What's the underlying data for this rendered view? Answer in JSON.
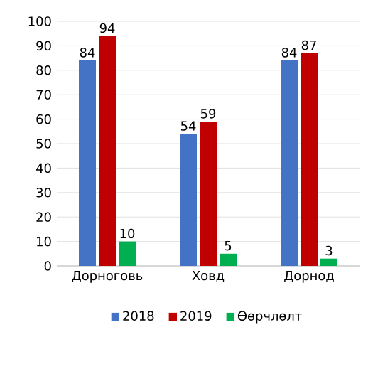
{
  "chart_data": {
    "type": "bar",
    "categories": [
      "Дорноговь",
      "Ховд",
      "Дорнод"
    ],
    "series": [
      {
        "name": "2018",
        "color": "#4472c4",
        "values": [
          84,
          54,
          84
        ]
      },
      {
        "name": "2019",
        "color": "#c00000",
        "values": [
          94,
          59,
          87
        ]
      },
      {
        "name": "Өөрчлөлт",
        "color": "#00b050",
        "values": [
          10,
          5,
          3
        ]
      }
    ],
    "ylim": [
      0,
      100
    ],
    "yticks": [
      0,
      10,
      20,
      30,
      40,
      50,
      60,
      70,
      80,
      90,
      100
    ],
    "grid": "y",
    "legend": "bottom",
    "data_labels": true
  }
}
